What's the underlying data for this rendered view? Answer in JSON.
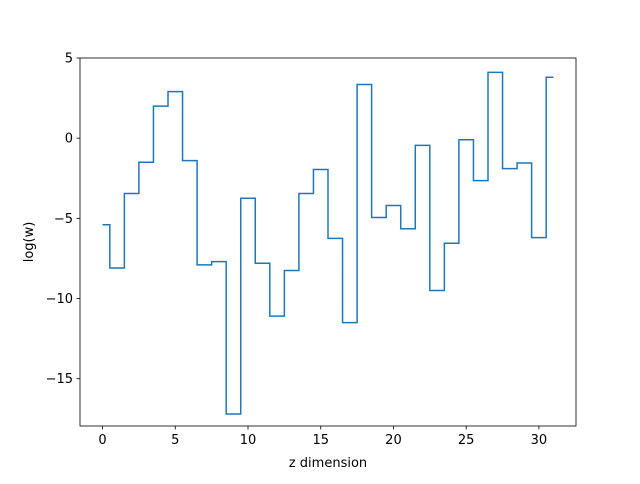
{
  "chart_data": {
    "type": "line",
    "drawstyle": "steps-mid",
    "title": "",
    "xlabel": "z dimension",
    "ylabel": "log(w)",
    "xlim": [
      -1.55,
      32.55
    ],
    "ylim": [
      -17.95,
      5.0
    ],
    "xticks": [
      0,
      5,
      10,
      15,
      20,
      25,
      30
    ],
    "yticks": [
      5,
      0,
      -5,
      -10,
      -15
    ],
    "ytick_labels": [
      "5",
      "0",
      "−5",
      "−10",
      "−15"
    ],
    "grid": false,
    "legend": "none",
    "series": [
      {
        "color": "#1f77b4",
        "x": [
          0,
          1,
          2,
          3,
          4,
          5,
          6,
          7,
          8,
          9,
          10,
          11,
          12,
          13,
          14,
          15,
          16,
          17,
          18,
          19,
          20,
          21,
          22,
          23,
          24,
          25,
          26,
          27,
          28,
          29,
          30,
          31
        ],
        "values": [
          -5.4,
          -8.1,
          -3.45,
          -1.5,
          2.0,
          2.9,
          -1.4,
          -7.9,
          -7.7,
          -17.2,
          -3.75,
          -7.8,
          -11.1,
          -8.25,
          -3.45,
          -1.95,
          -6.25,
          -11.5,
          3.35,
          -4.95,
          -4.2,
          -5.65,
          -0.45,
          -9.5,
          -6.55,
          -0.1,
          -2.65,
          4.1,
          -1.9,
          -1.55,
          -6.2,
          3.8
        ]
      }
    ]
  }
}
